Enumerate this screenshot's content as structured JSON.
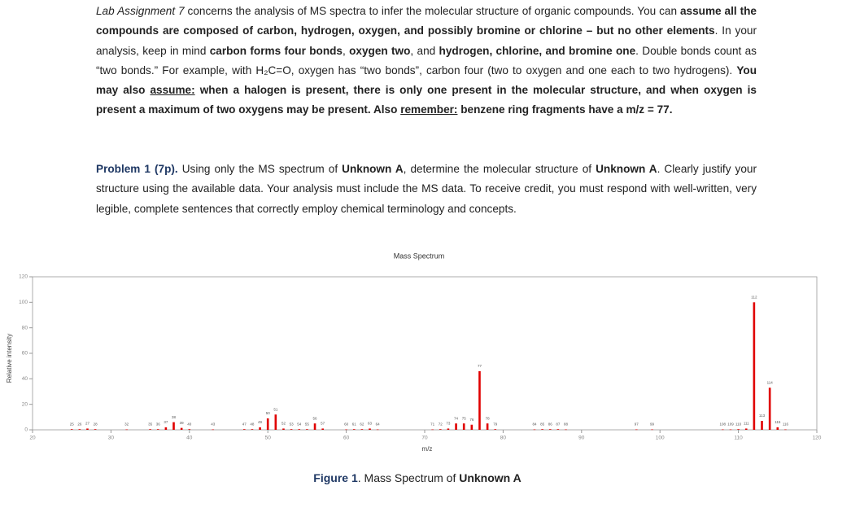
{
  "document": {
    "paragraphs": [
      {
        "runs": [
          {
            "text": "Lab Assignment 7",
            "italic": true
          },
          {
            "text": " concerns the analysis of MS spectra to infer the molecular structure of organic compounds. You can "
          },
          {
            "text": "assume all the compounds are composed of carbon, hydrogen, oxygen, and possibly bromine or chlorine – but no other elements",
            "bold": true
          },
          {
            "text": ". In your analysis, keep in mind "
          },
          {
            "text": "carbon forms four bonds",
            "bold": true
          },
          {
            "text": ", "
          },
          {
            "text": "oxygen two",
            "bold": true
          },
          {
            "text": ", and "
          },
          {
            "text": "hydrogen, chlorine, and bromine one",
            "bold": true
          },
          {
            "text": ". Double bonds count as “two bonds.” For example, with H₂C=O, oxygen has “two bonds”, carbon four (two to oxygen and one each to two hydrogens). "
          },
          {
            "text": "You may also ",
            "bold": true
          },
          {
            "text": "assume:",
            "bold": true,
            "underline": true
          },
          {
            "text": " when a halogen is present, there is only one present in the molecular structure, and when oxygen is present a maximum of two oxygens may be present. Also ",
            "bold": true
          },
          {
            "text": "remember:",
            "bold": true,
            "underline": true
          },
          {
            "text": " benzene ring fragments have a m/z = 77.",
            "bold": true
          }
        ]
      },
      {
        "runs": [
          {
            "text": "Problem 1 (7p).",
            "bold": true,
            "color": "#1f3864"
          },
          {
            "text": " Using only the MS spectrum of "
          },
          {
            "text": "Unknown A",
            "bold": true
          },
          {
            "text": ", determine the molecular structure of "
          },
          {
            "text": "Unknown A",
            "bold": true
          },
          {
            "text": ". Clearly justify your structure using the available data. Your analysis must include the MS data. To receive credit, you must respond with well-written, very legible, complete sentences that correctly employ chemical terminology and concepts."
          }
        ]
      }
    ],
    "caption": {
      "runs": [
        {
          "text": "Figure 1",
          "bold": true,
          "color": "#1f3864"
        },
        {
          "text": ". Mass Spectrum of "
        },
        {
          "text": "Unknown A",
          "bold": true
        }
      ]
    }
  },
  "chart_data": {
    "type": "bar",
    "title": "Mass Spectrum",
    "x_label": "m/z",
    "y_label": "Relative intensity",
    "x": [
      25,
      26,
      27,
      28,
      32,
      35,
      36,
      37,
      38,
      39,
      40,
      43,
      47,
      48,
      49,
      50,
      51,
      52,
      53,
      54,
      55,
      56,
      57,
      60,
      61,
      62,
      63,
      64,
      71,
      72,
      73,
      74,
      75,
      76,
      77,
      78,
      79,
      84,
      85,
      86,
      87,
      88,
      97,
      99,
      108,
      109,
      110,
      111,
      112,
      113,
      114,
      115,
      116
    ],
    "values": [
      0.5,
      0.5,
      1,
      0.5,
      0.3,
      0.5,
      0.5,
      2,
      6,
      1.5,
      0.5,
      0.3,
      0.5,
      0.5,
      2,
      9,
      12,
      1,
      0.5,
      0.5,
      0.5,
      5,
      1,
      0.3,
      0.5,
      0.5,
      1,
      0.3,
      0.3,
      0.5,
      1,
      5,
      5,
      4,
      46,
      5,
      0.5,
      0.3,
      0.5,
      0.5,
      0.5,
      0.3,
      0.3,
      0.3,
      0.3,
      0.3,
      0.5,
      1,
      100,
      7,
      33,
      2,
      0.3
    ],
    "color": "#e00000",
    "xlim": [
      20,
      120
    ],
    "xticks": [
      20,
      30,
      40,
      50,
      60,
      70,
      80,
      90,
      100,
      110,
      120
    ],
    "ylim": [
      0,
      120
    ],
    "yticks": [
      0,
      20,
      40,
      60,
      80,
      100,
      120
    ],
    "grid": false
  }
}
